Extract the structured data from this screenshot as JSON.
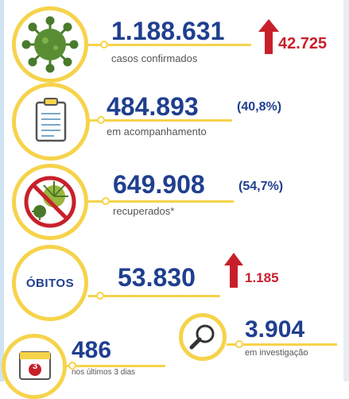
{
  "cases": {
    "value": "1.188.631",
    "label": "casos confirmados",
    "increase": "42.725",
    "icon": "virus-icon"
  },
  "monitoring": {
    "value": "484.893",
    "percent": "(40,8%)",
    "label": "em acompanhamento",
    "icon": "clipboard-icon"
  },
  "recovered": {
    "value": "649.908",
    "percent": "(54,7%)",
    "label": "recuperados*",
    "icon": "crossed-virus-icon"
  },
  "deaths": {
    "badge": "ÓBITOS",
    "value": "53.830",
    "increase": "1.185"
  },
  "recent": {
    "value": "486",
    "label": "nos últimos 3 dias",
    "calendar_number": "3",
    "icon": "calendar-icon"
  },
  "investigation": {
    "value": "3.904",
    "label": "em investigação",
    "icon": "magnifier-icon"
  },
  "colors": {
    "accent_yellow": "#f6d34b",
    "number_blue": "#1f3f8f",
    "increase_red": "#c8202b",
    "virus_green": "#4a7a2c"
  }
}
